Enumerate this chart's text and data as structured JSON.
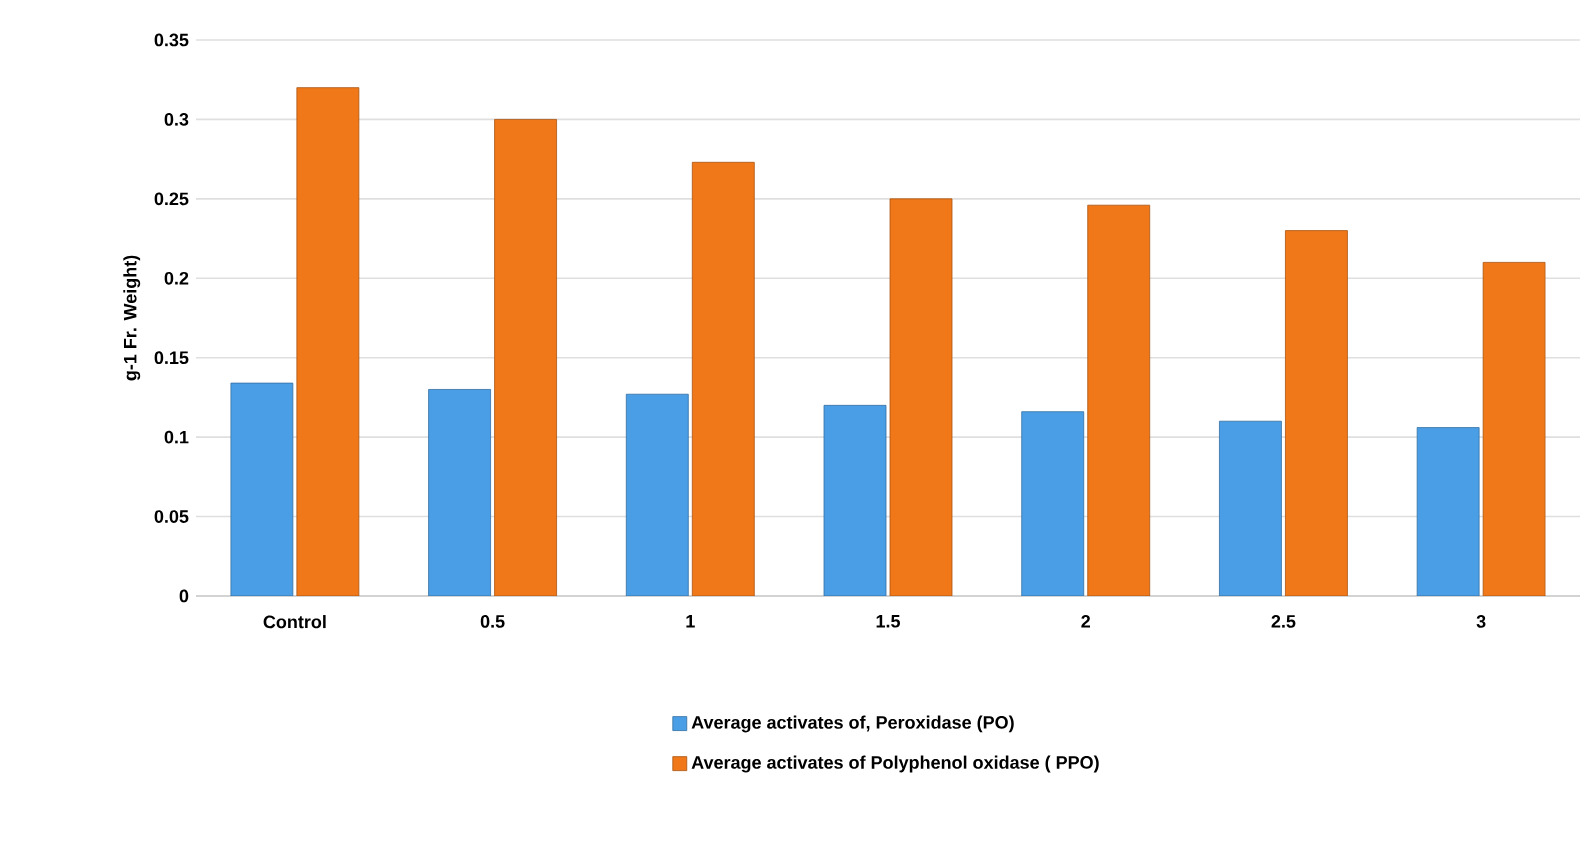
{
  "chart_data": {
    "type": "bar",
    "ylabel": "g-1 Fr. Weight)",
    "categories": [
      "Control",
      "0.5",
      "1",
      "1.5",
      "2",
      "2.5",
      "3"
    ],
    "series": [
      {
        "name": "Average activates of, Peroxidase (PO)",
        "color": "#4a9ee6",
        "values": [
          0.134,
          0.13,
          0.127,
          0.12,
          0.116,
          0.11,
          0.106
        ]
      },
      {
        "name": "Average activates of Polyphenol oxidase ( PPO)",
        "color": "#f07818",
        "values": [
          0.32,
          0.3,
          0.273,
          0.25,
          0.246,
          0.23,
          0.21
        ]
      }
    ],
    "ylim": [
      0,
      0.35
    ],
    "yticks": [
      0,
      0.05,
      0.1,
      0.15,
      0.2,
      0.25,
      0.3,
      0.35
    ],
    "grid": "y",
    "legend": "bottom"
  }
}
